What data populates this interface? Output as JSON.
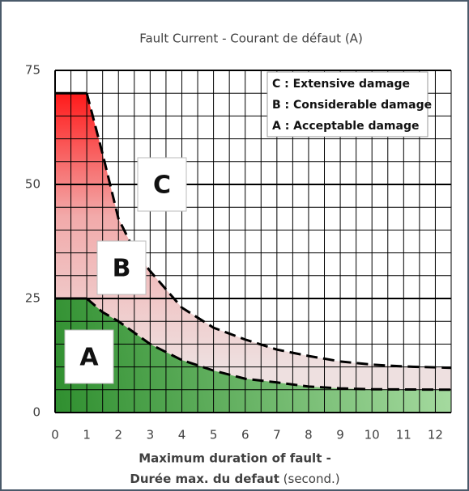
{
  "chart_data": {
    "type": "area_zones",
    "title": "Fault Current - Courant de défaut (A)",
    "xlabel_bold_1": "Maximum duration of fault -",
    "xlabel_bold_2": "Durée max. du defaut",
    "xlabel_unit": "(second.)",
    "xlim": [
      0,
      12.5
    ],
    "xticks": [
      0,
      1,
      2,
      3,
      4,
      5,
      6,
      7,
      8,
      9,
      10,
      11,
      12
    ],
    "xminor": [
      0.5,
      1.5,
      2.5,
      3.5,
      4.5,
      5.5,
      6.5,
      7.5,
      8.5,
      9.5,
      10.5,
      11.5,
      12.5
    ],
    "ylim": [
      0,
      75
    ],
    "yticks": [
      0,
      25,
      50,
      75
    ],
    "yminor": [
      5,
      10,
      15,
      20,
      30,
      35,
      40,
      45,
      55,
      60,
      65,
      70
    ],
    "grid": true,
    "legend": [
      "C : Extensive damage",
      "B : Considerable damage",
      "A : Acceptable damage"
    ],
    "zones": [
      "A",
      "B",
      "C"
    ],
    "curves": [
      {
        "x": [
          0,
          1,
          1.5,
          2,
          2.5,
          3,
          4,
          5,
          6,
          7,
          8,
          9,
          10,
          11,
          12.5
        ],
        "values": [
          70,
          70,
          56.7,
          42.5,
          35.5,
          31,
          23,
          18.6,
          16,
          13.8,
          12.4,
          11.2,
          10.5,
          10.1,
          9.8
        ],
        "color": "#ff1a1a"
      },
      {
        "x": [
          0,
          1,
          1.5,
          2,
          3,
          4,
          5,
          6,
          7,
          8,
          9,
          10,
          12.5
        ],
        "values": [
          25,
          25,
          22,
          20,
          15,
          11.5,
          9.2,
          7.4,
          6.6,
          5.7,
          5.3,
          5.1,
          5
        ],
        "color": "#2f8f2f"
      }
    ]
  }
}
